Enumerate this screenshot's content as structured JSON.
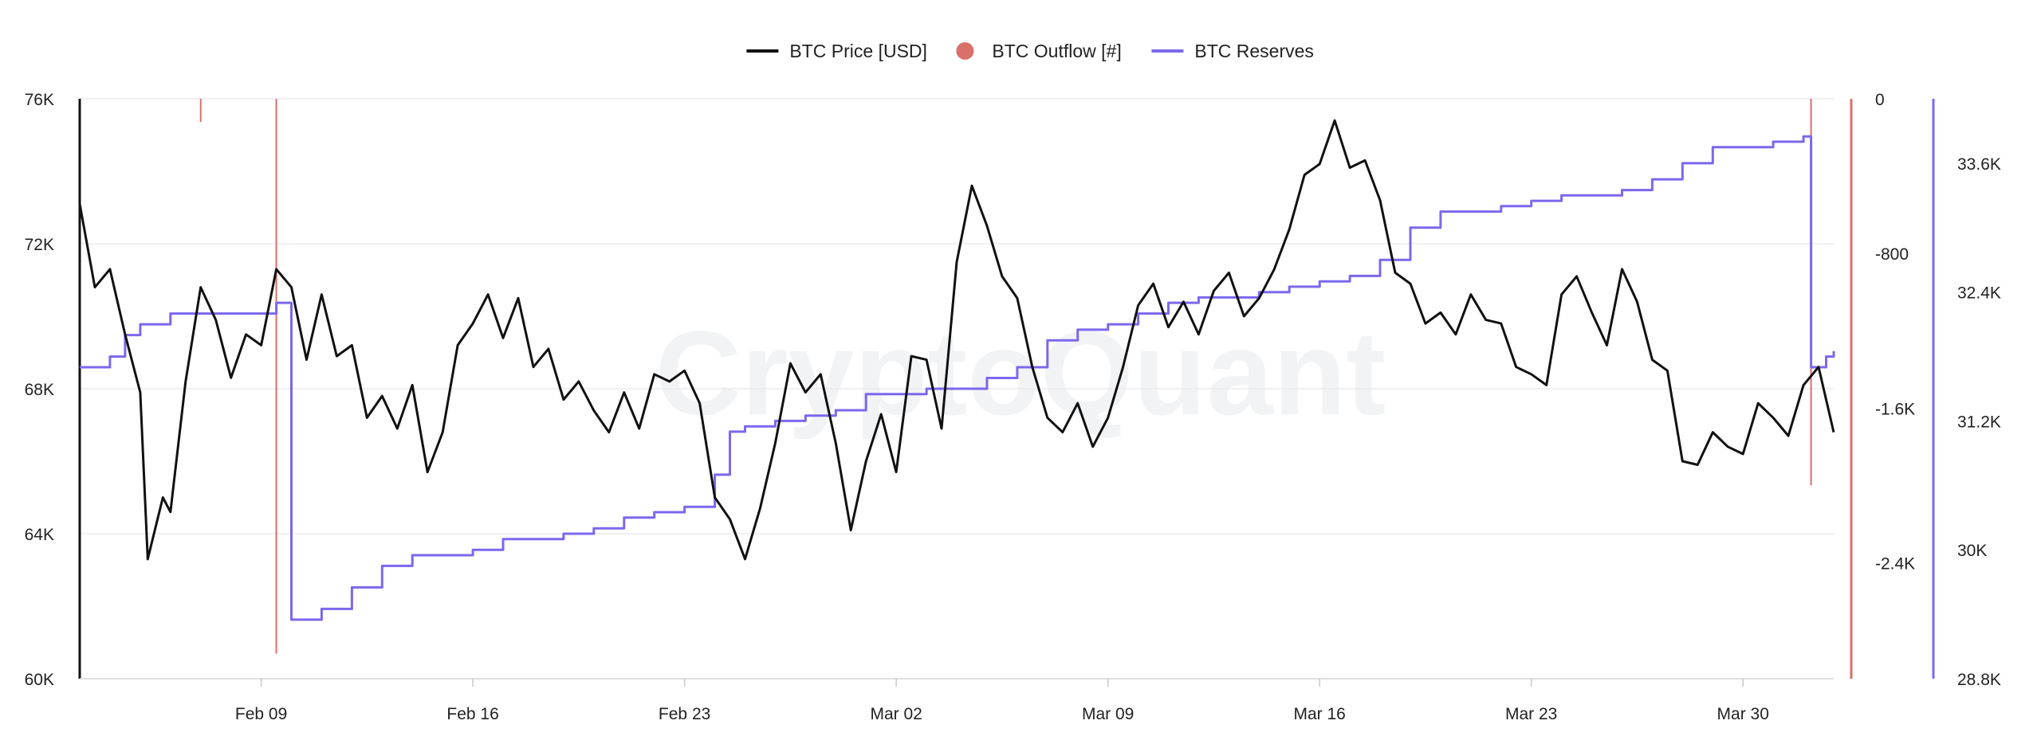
{
  "chart_data": {
    "type": "line",
    "watermark": "CryptoQuant",
    "legend": {
      "position": "top-center",
      "items": [
        {
          "label": "BTC Price [USD]",
          "symbol": "line",
          "color": "#111111"
        },
        {
          "label": "BTC Outflow [#]",
          "symbol": "dot",
          "color": "#d9706a"
        },
        {
          "label": "BTC Reserves",
          "symbol": "line",
          "color": "#7b68ee"
        }
      ]
    },
    "x_axis": {
      "range": [
        "2026-02-03",
        "2026-04-02"
      ],
      "ticks": [
        {
          "date": "2026-02-09",
          "label": "Feb 09"
        },
        {
          "date": "2026-02-16",
          "label": "Feb 16"
        },
        {
          "date": "2026-02-23",
          "label": "Feb 23"
        },
        {
          "date": "2026-03-02",
          "label": "Mar 02"
        },
        {
          "date": "2026-03-09",
          "label": "Mar 09"
        },
        {
          "date": "2026-03-16",
          "label": "Mar 16"
        },
        {
          "date": "2026-03-23",
          "label": "Mar 23"
        },
        {
          "date": "2026-03-30",
          "label": "Mar 30"
        }
      ]
    },
    "y_axes": {
      "price": {
        "side": "left",
        "range": [
          60000,
          76000
        ],
        "ticks": [
          {
            "value": 60000,
            "label": "60K"
          },
          {
            "value": 64000,
            "label": "64K"
          },
          {
            "value": 68000,
            "label": "68K"
          },
          {
            "value": 72000,
            "label": "72K"
          },
          {
            "value": 76000,
            "label": "76K"
          }
        ],
        "color": "#111111"
      },
      "outflow": {
        "side": "right",
        "range": [
          -3000,
          0
        ],
        "ticks": [
          {
            "value": 0,
            "label": "0"
          },
          {
            "value": -800,
            "label": "-800"
          },
          {
            "value": -1600,
            "label": "-1.6K"
          },
          {
            "value": -2400,
            "label": "-2.4K"
          }
        ],
        "color": "#d9706a"
      },
      "reserves": {
        "side": "right",
        "range": [
          28800,
          34200
        ],
        "ticks": [
          {
            "value": 28800,
            "label": "28.8K"
          },
          {
            "value": 30000,
            "label": "30K"
          },
          {
            "value": 31200,
            "label": "31.2K"
          },
          {
            "value": 32400,
            "label": "32.4K"
          },
          {
            "value": 33600,
            "label": "33.6K"
          }
        ],
        "color": "#7b68ee"
      }
    },
    "grid": true,
    "series": [
      {
        "name": "BTC Price [USD]",
        "axis": "price",
        "color": "#111111",
        "points": [
          [
            "2026-02-03T00:00",
            73100
          ],
          [
            "2026-02-03T12:00",
            70800
          ],
          [
            "2026-02-04T00:00",
            71300
          ],
          [
            "2026-02-04T12:00",
            69500
          ],
          [
            "2026-02-05T00:00",
            67900
          ],
          [
            "2026-02-05T06:00",
            63300
          ],
          [
            "2026-02-05T18:00",
            65000
          ],
          [
            "2026-02-06T00:00",
            64600
          ],
          [
            "2026-02-06T12:00",
            68200
          ],
          [
            "2026-02-07T00:00",
            70800
          ],
          [
            "2026-02-07T12:00",
            69900
          ],
          [
            "2026-02-08T00:00",
            68300
          ],
          [
            "2026-02-08T12:00",
            69500
          ],
          [
            "2026-02-09T00:00",
            69200
          ],
          [
            "2026-02-09T12:00",
            71300
          ],
          [
            "2026-02-10T00:00",
            70800
          ],
          [
            "2026-02-10T12:00",
            68800
          ],
          [
            "2026-02-11T00:00",
            70600
          ],
          [
            "2026-02-11T12:00",
            68900
          ],
          [
            "2026-02-12T00:00",
            69200
          ],
          [
            "2026-02-12T12:00",
            67200
          ],
          [
            "2026-02-13T00:00",
            67800
          ],
          [
            "2026-02-13T12:00",
            66900
          ],
          [
            "2026-02-14T00:00",
            68100
          ],
          [
            "2026-02-14T12:00",
            65700
          ],
          [
            "2026-02-15T00:00",
            66800
          ],
          [
            "2026-02-15T12:00",
            69200
          ],
          [
            "2026-02-16T00:00",
            69800
          ],
          [
            "2026-02-16T12:00",
            70600
          ],
          [
            "2026-02-17T00:00",
            69400
          ],
          [
            "2026-02-17T12:00",
            70500
          ],
          [
            "2026-02-18T00:00",
            68600
          ],
          [
            "2026-02-18T12:00",
            69100
          ],
          [
            "2026-02-19T00:00",
            67700
          ],
          [
            "2026-02-19T12:00",
            68200
          ],
          [
            "2026-02-20T00:00",
            67400
          ],
          [
            "2026-02-20T12:00",
            66800
          ],
          [
            "2026-02-21T00:00",
            67900
          ],
          [
            "2026-02-21T12:00",
            66900
          ],
          [
            "2026-02-22T00:00",
            68400
          ],
          [
            "2026-02-22T12:00",
            68200
          ],
          [
            "2026-02-23T00:00",
            68500
          ],
          [
            "2026-02-23T12:00",
            67600
          ],
          [
            "2026-02-24T00:00",
            65000
          ],
          [
            "2026-02-24T12:00",
            64400
          ],
          [
            "2026-02-25T00:00",
            63300
          ],
          [
            "2026-02-25T12:00",
            64700
          ],
          [
            "2026-02-26T00:00",
            66500
          ],
          [
            "2026-02-26T12:00",
            68700
          ],
          [
            "2026-02-27T00:00",
            67900
          ],
          [
            "2026-02-27T12:00",
            68400
          ],
          [
            "2026-02-28T00:00",
            66500
          ],
          [
            "2026-02-28T12:00",
            64100
          ],
          [
            "2026-03-01T00:00",
            66000
          ],
          [
            "2026-03-01T12:00",
            67300
          ],
          [
            "2026-03-02T00:00",
            65700
          ],
          [
            "2026-03-02T12:00",
            68900
          ],
          [
            "2026-03-03T00:00",
            68800
          ],
          [
            "2026-03-03T12:00",
            66900
          ],
          [
            "2026-03-04T00:00",
            71500
          ],
          [
            "2026-03-04T12:00",
            73600
          ],
          [
            "2026-03-05T00:00",
            72500
          ],
          [
            "2026-03-05T12:00",
            71100
          ],
          [
            "2026-03-06T00:00",
            70500
          ],
          [
            "2026-03-06T12:00",
            68600
          ],
          [
            "2026-03-07T00:00",
            67200
          ],
          [
            "2026-03-07T12:00",
            66800
          ],
          [
            "2026-03-08T00:00",
            67600
          ],
          [
            "2026-03-08T12:00",
            66400
          ],
          [
            "2026-03-09T00:00",
            67200
          ],
          [
            "2026-03-09T12:00",
            68600
          ],
          [
            "2026-03-10T00:00",
            70300
          ],
          [
            "2026-03-10T12:00",
            70900
          ],
          [
            "2026-03-11T00:00",
            69700
          ],
          [
            "2026-03-11T12:00",
            70400
          ],
          [
            "2026-03-12T00:00",
            69500
          ],
          [
            "2026-03-12T12:00",
            70700
          ],
          [
            "2026-03-13T00:00",
            71200
          ],
          [
            "2026-03-13T12:00",
            70000
          ],
          [
            "2026-03-14T00:00",
            70500
          ],
          [
            "2026-03-14T12:00",
            71300
          ],
          [
            "2026-03-15T00:00",
            72400
          ],
          [
            "2026-03-15T12:00",
            73900
          ],
          [
            "2026-03-16T00:00",
            74200
          ],
          [
            "2026-03-16T12:00",
            75400
          ],
          [
            "2026-03-17T00:00",
            74100
          ],
          [
            "2026-03-17T12:00",
            74300
          ],
          [
            "2026-03-18T00:00",
            73200
          ],
          [
            "2026-03-18T12:00",
            71200
          ],
          [
            "2026-03-19T00:00",
            70900
          ],
          [
            "2026-03-19T12:00",
            69800
          ],
          [
            "2026-03-20T00:00",
            70100
          ],
          [
            "2026-03-20T12:00",
            69500
          ],
          [
            "2026-03-21T00:00",
            70600
          ],
          [
            "2026-03-21T12:00",
            69900
          ],
          [
            "2026-03-22T00:00",
            69800
          ],
          [
            "2026-03-22T12:00",
            68600
          ],
          [
            "2026-03-23T00:00",
            68400
          ],
          [
            "2026-03-23T12:00",
            68100
          ],
          [
            "2026-03-24T00:00",
            70600
          ],
          [
            "2026-03-24T12:00",
            71100
          ],
          [
            "2026-03-25T00:00",
            70100
          ],
          [
            "2026-03-25T12:00",
            69200
          ],
          [
            "2026-03-26T00:00",
            71300
          ],
          [
            "2026-03-26T12:00",
            70400
          ],
          [
            "2026-03-27T00:00",
            68800
          ],
          [
            "2026-03-27T12:00",
            68500
          ],
          [
            "2026-03-28T00:00",
            66000
          ],
          [
            "2026-03-28T12:00",
            65900
          ],
          [
            "2026-03-29T00:00",
            66800
          ],
          [
            "2026-03-29T12:00",
            66400
          ],
          [
            "2026-03-30T00:00",
            66200
          ],
          [
            "2026-03-30T12:00",
            67600
          ],
          [
            "2026-03-31T00:00",
            67200
          ],
          [
            "2026-03-31T12:00",
            66700
          ],
          [
            "2026-04-01T00:00",
            68100
          ],
          [
            "2026-04-01T12:00",
            68600
          ],
          [
            "2026-04-02T00:00",
            66800
          ]
        ]
      },
      {
        "name": "BTC Reserves",
        "axis": "reserves",
        "color": "#7b68ee",
        "points": [
          [
            "2026-02-03T00:00",
            31700
          ],
          [
            "2026-02-04T00:00",
            31800
          ],
          [
            "2026-02-04T12:00",
            32000
          ],
          [
            "2026-02-05T00:00",
            32100
          ],
          [
            "2026-02-06T00:00",
            32200
          ],
          [
            "2026-02-07T00:00",
            32200
          ],
          [
            "2026-02-08T00:00",
            32200
          ],
          [
            "2026-02-09T00:00",
            32200
          ],
          [
            "2026-02-09T12:00",
            32300
          ],
          [
            "2026-02-10T00:00",
            29350
          ],
          [
            "2026-02-11T00:00",
            29450
          ],
          [
            "2026-02-12T00:00",
            29650
          ],
          [
            "2026-02-13T00:00",
            29850
          ],
          [
            "2026-02-14T00:00",
            29950
          ],
          [
            "2026-02-15T00:00",
            29950
          ],
          [
            "2026-02-16T00:00",
            30000
          ],
          [
            "2026-02-17T00:00",
            30100
          ],
          [
            "2026-02-18T00:00",
            30100
          ],
          [
            "2026-02-19T00:00",
            30150
          ],
          [
            "2026-02-20T00:00",
            30200
          ],
          [
            "2026-02-21T00:00",
            30300
          ],
          [
            "2026-02-22T00:00",
            30350
          ],
          [
            "2026-02-23T00:00",
            30400
          ],
          [
            "2026-02-24T00:00",
            30700
          ],
          [
            "2026-02-24T12:00",
            31100
          ],
          [
            "2026-02-25T00:00",
            31150
          ],
          [
            "2026-02-26T00:00",
            31200
          ],
          [
            "2026-02-27T00:00",
            31250
          ],
          [
            "2026-02-28T00:00",
            31300
          ],
          [
            "2026-03-01T00:00",
            31450
          ],
          [
            "2026-03-02T00:00",
            31450
          ],
          [
            "2026-03-03T00:00",
            31500
          ],
          [
            "2026-03-04T00:00",
            31500
          ],
          [
            "2026-03-05T00:00",
            31600
          ],
          [
            "2026-03-06T00:00",
            31700
          ],
          [
            "2026-03-07T00:00",
            31950
          ],
          [
            "2026-03-08T00:00",
            32050
          ],
          [
            "2026-03-09T00:00",
            32100
          ],
          [
            "2026-03-10T00:00",
            32200
          ],
          [
            "2026-03-11T00:00",
            32300
          ],
          [
            "2026-03-12T00:00",
            32350
          ],
          [
            "2026-03-13T00:00",
            32350
          ],
          [
            "2026-03-14T00:00",
            32400
          ],
          [
            "2026-03-15T00:00",
            32450
          ],
          [
            "2026-03-16T00:00",
            32500
          ],
          [
            "2026-03-17T00:00",
            32550
          ],
          [
            "2026-03-18T00:00",
            32700
          ],
          [
            "2026-03-19T00:00",
            33000
          ],
          [
            "2026-03-20T00:00",
            33150
          ],
          [
            "2026-03-21T00:00",
            33150
          ],
          [
            "2026-03-22T00:00",
            33200
          ],
          [
            "2026-03-23T00:00",
            33250
          ],
          [
            "2026-03-24T00:00",
            33300
          ],
          [
            "2026-03-25T00:00",
            33300
          ],
          [
            "2026-03-26T00:00",
            33350
          ],
          [
            "2026-03-27T00:00",
            33450
          ],
          [
            "2026-03-28T00:00",
            33600
          ],
          [
            "2026-03-29T00:00",
            33750
          ],
          [
            "2026-03-30T00:00",
            33750
          ],
          [
            "2026-03-31T00:00",
            33800
          ],
          [
            "2026-04-01T00:00",
            33850
          ],
          [
            "2026-04-01T06:00",
            31700
          ],
          [
            "2026-04-01T18:00",
            31800
          ],
          [
            "2026-04-02T00:00",
            31850
          ]
        ]
      },
      {
        "name": "BTC Outflow [#]",
        "axis": "outflow",
        "color": "#d9706a",
        "type": "spikes",
        "points": [
          [
            "2026-02-07T00:00",
            -120
          ],
          [
            "2026-02-09T12:00",
            -2870
          ],
          [
            "2026-04-01T06:00",
            -2000
          ]
        ]
      }
    ]
  }
}
